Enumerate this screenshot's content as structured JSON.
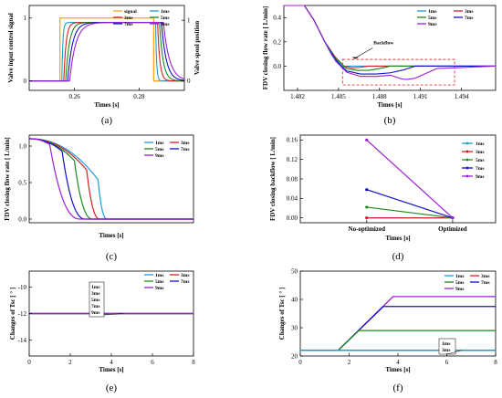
{
  "colors": {
    "signal": "#f5a623",
    "1ms": "#1f9bd7",
    "3ms": "#d62020",
    "5ms": "#1a8a1a",
    "7ms": "#1010c8",
    "9ms": "#9b1fd6",
    "annotation": "#e23b3b"
  },
  "chart_data": [
    {
      "id": "a",
      "type": "line",
      "caption": "(a)",
      "xlabel": "Times [s]",
      "ylabel": "Valve input control signal",
      "ylabel_right": "Valve spool position",
      "xlim": [
        0.246,
        0.294
      ],
      "ylim": [
        -0.15,
        1.2
      ],
      "xticks": [
        0.26,
        0.28
      ],
      "xtick_labels": [
        "0.26",
        "0.28"
      ],
      "yticks": [
        0,
        1
      ],
      "ytick_labels": [
        "0",
        "1"
      ],
      "yticks_right": [
        0,
        1
      ],
      "ytick_labels_right": [
        "0",
        "1"
      ],
      "legend": [
        "signal",
        "1ms",
        "3ms",
        "5ms",
        "7ms",
        "9ms"
      ],
      "legend_position": "top-right",
      "signal": {
        "x": [
          0.246,
          0.2555,
          0.2555,
          0.2845,
          0.2845,
          0.294
        ],
        "y": [
          0,
          0,
          1,
          1,
          0,
          0
        ]
      },
      "series": [
        {
          "name": "1ms",
          "delay": 0.0006,
          "tau": 0.0003
        },
        {
          "name": "3ms",
          "delay": 0.0012,
          "tau": 0.0007
        },
        {
          "name": "5ms",
          "delay": 0.0018,
          "tau": 0.0011
        },
        {
          "name": "7ms",
          "delay": 0.0024,
          "tau": 0.0015
        },
        {
          "name": "9ms",
          "delay": 0.003,
          "tau": 0.0019
        }
      ],
      "steady_level": 0.93
    },
    {
      "id": "b",
      "type": "line",
      "caption": "(b)",
      "xlabel": "Times [s]",
      "ylabel": "FDV closing flow rate [ L/min]",
      "xlim": [
        1.481,
        1.4965
      ],
      "ylim": [
        -0.2,
        0.5
      ],
      "xticks": [
        1.482,
        1.485,
        1.488,
        1.491,
        1.494
      ],
      "xtick_labels": [
        "1.482",
        "1.485",
        "1.488",
        "1.491",
        "1.494"
      ],
      "yticks": [
        0.0,
        0.2,
        0.4
      ],
      "ytick_labels": [
        "0.0",
        "0.2",
        "0.4"
      ],
      "legend": [
        "1ms",
        "3ms",
        "5ms",
        "7ms",
        "9ms"
      ],
      "legend_position": "top-right",
      "annotation": "Backflow",
      "annotation_box": {
        "x": [
          1.4853,
          1.4935
        ],
        "y": [
          -0.155,
          0.055
        ]
      },
      "series": [
        {
          "name": "1ms",
          "x": [
            1.481,
            1.4825,
            1.4832,
            1.484,
            1.4845,
            1.485,
            1.4853,
            1.4856,
            1.486,
            1.4965
          ],
          "y": [
            0.5,
            0.5,
            0.38,
            0.2,
            0.09,
            0.02,
            -0.005,
            0.0,
            0.0,
            0.0
          ]
        },
        {
          "name": "3ms",
          "x": [
            1.481,
            1.4825,
            1.4832,
            1.484,
            1.4848,
            1.4854,
            1.486,
            1.4866,
            1.4872,
            1.4965
          ],
          "y": [
            0.5,
            0.5,
            0.38,
            0.2,
            0.07,
            0.0,
            -0.015,
            -0.01,
            0.0,
            0.0
          ]
        },
        {
          "name": "5ms",
          "x": [
            1.481,
            1.4825,
            1.4832,
            1.484,
            1.4848,
            1.4856,
            1.4864,
            1.4872,
            1.488,
            1.4888,
            1.4965
          ],
          "y": [
            0.5,
            0.5,
            0.38,
            0.2,
            0.06,
            -0.02,
            -0.035,
            -0.035,
            -0.02,
            0.0,
            0.0
          ]
        },
        {
          "name": "7ms",
          "x": [
            1.481,
            1.4825,
            1.4832,
            1.484,
            1.4848,
            1.4856,
            1.4866,
            1.4878,
            1.4888,
            1.4898,
            1.4906,
            1.4965
          ],
          "y": [
            0.5,
            0.5,
            0.38,
            0.2,
            0.05,
            -0.04,
            -0.065,
            -0.065,
            -0.055,
            -0.03,
            0.0,
            0.0
          ]
        },
        {
          "name": "9ms",
          "x": [
            1.481,
            1.4825,
            1.4832,
            1.484,
            1.4848,
            1.4856,
            1.4866,
            1.4878,
            1.4888,
            1.4896,
            1.49,
            1.4906,
            1.4914,
            1.4922,
            1.4965
          ],
          "y": [
            0.5,
            0.5,
            0.38,
            0.2,
            0.04,
            -0.05,
            -0.085,
            -0.085,
            -0.075,
            -0.105,
            -0.11,
            -0.1,
            -0.06,
            -0.02,
            0.0
          ]
        }
      ]
    },
    {
      "id": "c",
      "type": "line",
      "caption": "(c)",
      "xlabel": "Times [s]",
      "ylabel": "FDV closing flow rate [ L/min]",
      "xlim": [
        0,
        8
      ],
      "ylim": [
        -0.05,
        1.15
      ],
      "xticks": [],
      "yticks": [
        0.0,
        0.5,
        1.0
      ],
      "ytick_labels": [
        "0.0",
        "0.5",
        "1.0"
      ],
      "legend": [
        "1ms",
        "3ms",
        "5ms",
        "7ms",
        "9ms"
      ],
      "legend_position": "top-right",
      "start_value": 1.1,
      "series": [
        {
          "name": "1ms",
          "closing_start": 3.35,
          "curve_start": 0.0,
          "drop_value": 0.54,
          "end_time": 3.8
        },
        {
          "name": "3ms",
          "closing_start": 2.8,
          "curve_start": 0.0,
          "drop_value": 0.67,
          "end_time": 3.45
        },
        {
          "name": "5ms",
          "closing_start": 2.2,
          "curve_start": 0.0,
          "drop_value": 0.8,
          "end_time": 3.1
        },
        {
          "name": "7ms",
          "closing_start": 1.6,
          "curve_start": 0.0,
          "drop_value": 0.93,
          "end_time": 2.75
        },
        {
          "name": "9ms",
          "closing_start": 1.0,
          "curve_start": 0.0,
          "drop_value": 1.02,
          "end_time": 2.5
        }
      ]
    },
    {
      "id": "d",
      "type": "line",
      "caption": "(d)",
      "xlabel": "Times [s]",
      "ylabel": "FDV closing backflow [ L/min]",
      "categories": [
        "No-optimized",
        "Optimized"
      ],
      "ylim": [
        -0.01,
        0.17
      ],
      "yticks": [
        0.0,
        0.04,
        0.08,
        0.12,
        0.16
      ],
      "ytick_labels": [
        "0.00",
        "0.04",
        "0.08",
        "0.12",
        "0.16"
      ],
      "legend": [
        "1ms",
        "3ms",
        "5ms",
        "7ms",
        "9ms"
      ],
      "legend_position": "top-right",
      "series": [
        {
          "name": "1ms",
          "values": [
            0.0,
            0.0
          ]
        },
        {
          "name": "3ms",
          "values": [
            0.0,
            0.0
          ]
        },
        {
          "name": "5ms",
          "values": [
            0.022,
            0.0
          ]
        },
        {
          "name": "7ms",
          "values": [
            0.058,
            0.0
          ]
        },
        {
          "name": "9ms",
          "values": [
            0.16,
            0.0
          ]
        }
      ]
    },
    {
      "id": "e",
      "type": "line",
      "caption": "(e)",
      "xlabel": "Times [s]",
      "ylabel": "Changes of Tsc [ ° ]",
      "xlim": [
        0,
        8
      ],
      "ylim": [
        -15.2,
        -8.8
      ],
      "xticks": [
        0,
        2,
        4,
        6,
        8
      ],
      "xtick_labels": [
        "0",
        "2",
        "4",
        "6",
        "8"
      ],
      "yticks": [
        -14,
        -12,
        -10
      ],
      "ytick_labels": [
        "-14",
        "-12",
        "-10"
      ],
      "legend": [
        "1ms",
        "3ms",
        "5ms",
        "7ms",
        "9ms"
      ],
      "legend_position": "top-right",
      "callout": [
        "1ms",
        "3ms",
        "5ms",
        "7ms",
        "9ms"
      ],
      "series": [
        {
          "name": "1ms",
          "x": [
            0,
            8
          ],
          "y": [
            -12,
            -12
          ]
        },
        {
          "name": "3ms",
          "x": [
            0,
            8
          ],
          "y": [
            -12,
            -12
          ]
        },
        {
          "name": "5ms",
          "x": [
            0,
            8
          ],
          "y": [
            -12,
            -12
          ]
        },
        {
          "name": "7ms",
          "x": [
            0,
            8
          ],
          "y": [
            -12,
            -12
          ]
        },
        {
          "name": "9ms",
          "x": [
            0,
            8
          ],
          "y": [
            -12,
            -12
          ]
        }
      ]
    },
    {
      "id": "f",
      "type": "line",
      "caption": "(f)",
      "xlabel": "Times [s]",
      "ylabel": "Changes of Tsc [ ° ]",
      "xlim": [
        0,
        8
      ],
      "ylim": [
        20,
        50
      ],
      "xticks": [
        0,
        2,
        4,
        6,
        8
      ],
      "xtick_labels": [
        "0",
        "2",
        "4",
        "6",
        "8"
      ],
      "yticks": [
        20,
        30,
        40,
        50
      ],
      "ytick_labels": [
        "20",
        "30",
        "40",
        "50"
      ],
      "legend": [
        "1ms",
        "3ms",
        "5ms",
        "7ms",
        "9ms"
      ],
      "legend_position": "top-right",
      "callout": [
        "1ms",
        "3ms"
      ],
      "series": [
        {
          "name": "1ms",
          "x": [
            0,
            8
          ],
          "y": [
            22,
            22
          ]
        },
        {
          "name": "3ms",
          "x": [
            0,
            8
          ],
          "y": [
            22,
            22
          ]
        },
        {
          "name": "5ms",
          "x": [
            0,
            1.55,
            2.4,
            8
          ],
          "y": [
            22,
            22,
            29,
            29
          ]
        },
        {
          "name": "7ms",
          "x": [
            0,
            1.55,
            3.4,
            8
          ],
          "y": [
            22,
            22,
            37.5,
            37.5
          ]
        },
        {
          "name": "9ms",
          "x": [
            0,
            1.55,
            3.8,
            8
          ],
          "y": [
            22,
            22,
            41,
            41
          ]
        }
      ]
    }
  ]
}
